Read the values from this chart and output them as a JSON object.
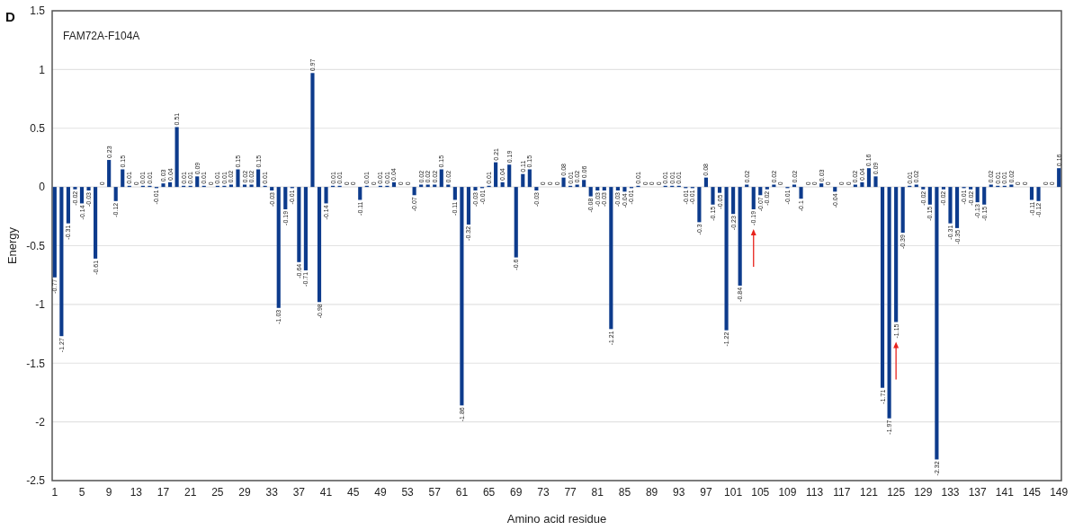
{
  "chart_data": {
    "type": "bar",
    "title": "FAM72A-F104A",
    "xlabel": "Amino acid residue",
    "ylabel": "Energy",
    "annotations": [
      "D"
    ],
    "categories": [
      "1",
      null,
      null,
      null,
      "5",
      null,
      null,
      null,
      "9",
      null,
      null,
      null,
      "13",
      null,
      null,
      null,
      "17",
      null,
      null,
      null,
      "21",
      null,
      null,
      null,
      "25",
      null,
      null,
      null,
      "29",
      null,
      null,
      null,
      "33",
      null,
      null,
      null,
      "37",
      null,
      null,
      null,
      "41",
      null,
      null,
      null,
      "45",
      null,
      null,
      null,
      "49",
      null,
      null,
      null,
      "53",
      null,
      null,
      null,
      "57",
      null,
      null,
      null,
      "61",
      null,
      null,
      null,
      "65",
      null,
      null,
      null,
      "69",
      null,
      null,
      null,
      "73",
      null,
      null,
      null,
      "77",
      null,
      null,
      null,
      "81",
      null,
      null,
      null,
      "85",
      null,
      null,
      null,
      "89",
      null,
      null,
      null,
      "93",
      null,
      null,
      null,
      "97",
      null,
      null,
      null,
      "101",
      null,
      null,
      null,
      "105",
      null,
      null,
      null,
      "109",
      null,
      null,
      null,
      "113",
      null,
      null,
      null,
      "117",
      null,
      null,
      null,
      "121",
      null,
      null,
      null,
      "125",
      null,
      null,
      null,
      "129",
      null,
      null,
      null,
      "133",
      null,
      null,
      null,
      "137",
      null,
      null,
      null,
      "141",
      null,
      null,
      null,
      "145",
      null,
      null,
      null,
      "149"
    ],
    "values": [
      -0.77,
      -1.27,
      -0.31,
      -0.02,
      -0.14,
      -0.03,
      -0.61,
      0,
      0.23,
      -0.12,
      0.15,
      0.01,
      0,
      0.01,
      0.01,
      -0.01,
      0.03,
      0.04,
      0.51,
      0.01,
      0.01,
      0.09,
      0.01,
      0,
      0.01,
      0.01,
      0.02,
      0.15,
      0.02,
      0.02,
      0.15,
      0.01,
      -0.03,
      -1.03,
      -0.19,
      -0.01,
      -0.64,
      -0.71,
      0.97,
      -0.98,
      -0.14,
      0.01,
      0.01,
      0,
      0,
      -0.11,
      0.01,
      0,
      0.01,
      0.01,
      0.04,
      0,
      0,
      -0.07,
      0.02,
      0.02,
      0.02,
      0.15,
      0.02,
      -0.11,
      -1.86,
      -0.32,
      -0.03,
      -0.01,
      0.01,
      0.21,
      0.04,
      0.19,
      -0.6,
      0.11,
      0.15,
      -0.03,
      0,
      0,
      0,
      0.08,
      0.01,
      0.02,
      0.06,
      -0.08,
      -0.03,
      -0.03,
      -1.21,
      -0.03,
      -0.04,
      -0.01,
      0.01,
      0,
      0,
      0,
      0.01,
      0.01,
      0.01,
      -0.01,
      -0.01,
      -0.3,
      0.08,
      -0.15,
      -0.05,
      -1.22,
      -0.23,
      -0.84,
      0.02,
      -0.19,
      -0.07,
      -0.02,
      0.02,
      0,
      -0.01,
      0.02,
      -0.1,
      0,
      0,
      0.03,
      0,
      -0.04,
      0,
      0,
      0.02,
      0.04,
      0.16,
      0.09,
      -1.71,
      -1.97,
      -1.15,
      -0.39,
      0.01,
      0.02,
      -0.02,
      -0.15,
      -2.32,
      -0.02,
      -0.31,
      -0.35,
      -0.01,
      -0.02,
      -0.13,
      -0.15,
      0.02,
      0.01,
      0.01,
      0.02,
      0,
      0,
      -0.11,
      -0.12,
      0,
      0,
      0.16
    ],
    "color": "#0d3b8c",
    "ylim": [
      -2.5,
      1.5
    ],
    "yticks": [
      -2.5,
      -2,
      -1.5,
      -1,
      -0.5,
      0,
      0.5,
      1,
      1.5
    ],
    "grid": "y",
    "data_labels": true
  }
}
